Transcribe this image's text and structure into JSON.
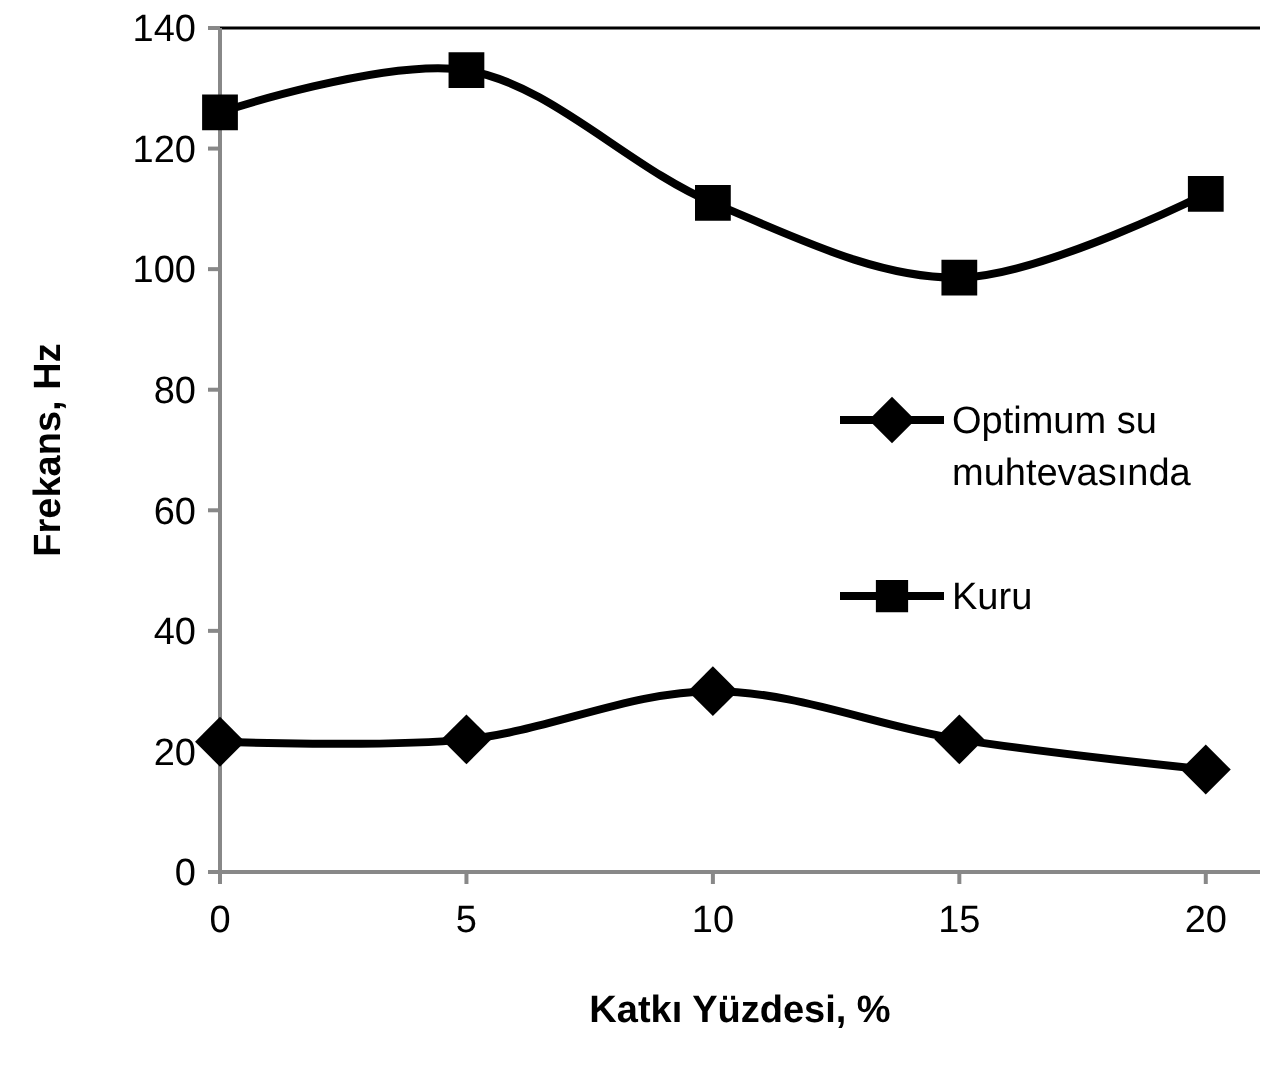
{
  "chart_data": {
    "type": "line",
    "xlabel": "Katkı Yüzdesi, %",
    "ylabel": "Frekans, Hz",
    "x": [
      0,
      5,
      10,
      15,
      20
    ],
    "series": [
      {
        "name": "Optimum su muhtevasında",
        "color": "#000000",
        "marker": "diamond",
        "values": [
          21.6,
          22,
          30,
          22,
          17
        ]
      },
      {
        "name": "Kuru",
        "color": "#000000",
        "marker": "square",
        "values": [
          126,
          133,
          111,
          98.6,
          112.5
        ]
      }
    ],
    "xlim": [
      0,
      21.1
    ],
    "xticks": [
      0,
      5,
      10,
      15,
      20
    ],
    "ylim": [
      0,
      140
    ],
    "yticks": [
      0,
      20,
      40,
      60,
      80,
      100,
      120,
      140
    ],
    "grid": false,
    "legend": "right",
    "line_style": "solid"
  }
}
